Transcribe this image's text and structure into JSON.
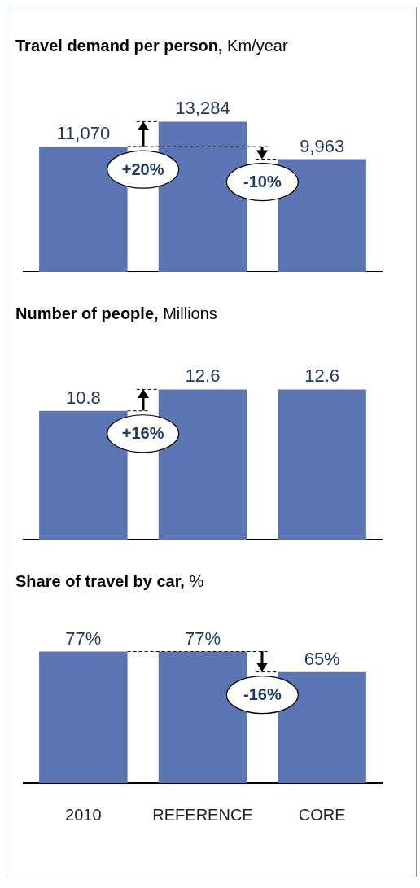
{
  "chart_data": [
    {
      "type": "bar",
      "title": "Travel demand per person, Km/year",
      "categories": [
        null,
        null,
        null
      ],
      "values": [
        11070,
        13284,
        9963
      ],
      "value_labels": [
        "11,070",
        "13,284",
        "9,963"
      ],
      "color": "#5b74b4",
      "tick_labels": false,
      "grid": false,
      "legend": false,
      "annotations": [
        "+20%",
        "-10%"
      ]
    },
    {
      "type": "bar",
      "title": "Number of people, Millions",
      "categories": [
        null,
        null,
        null
      ],
      "values": [
        10.8,
        12.6,
        12.6
      ],
      "value_labels": [
        "10.8",
        "12.6",
        "12.6"
      ],
      "color": "#5b74b4",
      "tick_labels": false,
      "grid": false,
      "legend": false,
      "annotations": [
        "+16%"
      ]
    },
    {
      "type": "bar",
      "title": "Share of travel by car, %",
      "categories": [
        "2010",
        "REFERENCE",
        "CORE"
      ],
      "values": [
        77,
        77,
        65
      ],
      "value_labels": [
        "77%",
        "77%",
        "65%"
      ],
      "color": "#5b74b4",
      "tick_labels": "x",
      "grid": false,
      "legend": false,
      "annotations": [
        "-16%"
      ]
    }
  ]
}
